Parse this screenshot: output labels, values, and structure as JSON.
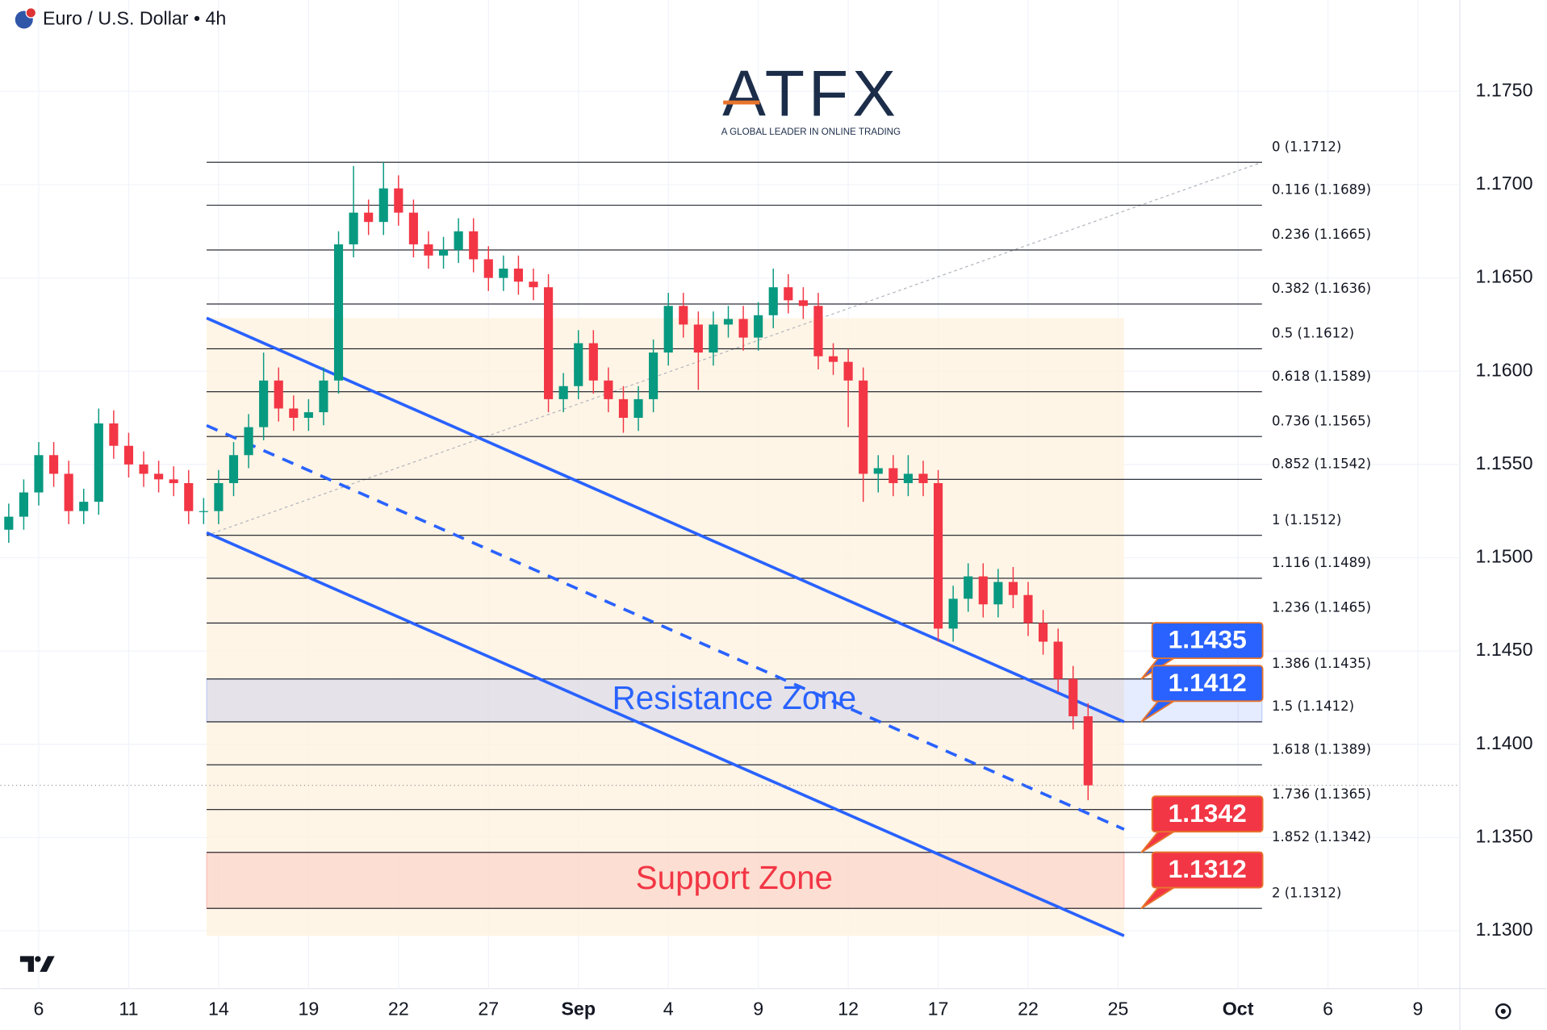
{
  "chart_data": {
    "type": "candlestick",
    "title": "Euro / U.S. Dollar • 4h",
    "logo": "ATFX",
    "tagline": "A GLOBAL LEADER IN ONLINE TRADING",
    "up_color": "#089981",
    "down_color": "#f23645",
    "xlim": [
      -1.28,
      47.4
    ],
    "ylim": [
      1.1269,
      1.1799
    ],
    "xticks": [
      {
        "value": 0,
        "label": "6"
      },
      {
        "value": 3,
        "label": "11"
      },
      {
        "value": 6,
        "label": "14"
      },
      {
        "value": 9,
        "label": "19"
      },
      {
        "value": 12,
        "label": "22"
      },
      {
        "value": 15,
        "label": "27"
      },
      {
        "value": 18,
        "label": "Sep"
      },
      {
        "value": 21,
        "label": "4"
      },
      {
        "value": 24,
        "label": "9"
      },
      {
        "value": 27,
        "label": "12"
      },
      {
        "value": 30,
        "label": "17"
      },
      {
        "value": 33,
        "label": "22"
      },
      {
        "value": 36,
        "label": "25"
      },
      {
        "value": 40,
        "label": "Oct"
      },
      {
        "value": 43,
        "label": "6"
      },
      {
        "value": 46,
        "label": "9"
      }
    ],
    "yticks": [
      {
        "value": 1.13,
        "label": "1.1300"
      },
      {
        "value": 1.135,
        "label": "1.1350"
      },
      {
        "value": 1.14,
        "label": "1.1400"
      },
      {
        "value": 1.145,
        "label": "1.1450"
      },
      {
        "value": 1.15,
        "label": "1.1500"
      },
      {
        "value": 1.155,
        "label": "1.1550"
      },
      {
        "value": 1.16,
        "label": "1.1600"
      },
      {
        "value": 1.165,
        "label": "1.1650"
      },
      {
        "value": 1.17,
        "label": "1.1700"
      },
      {
        "value": 1.175,
        "label": "1.1750"
      }
    ],
    "x": [
      -1,
      -0.5,
      0,
      0.5,
      1,
      1.5,
      2,
      2.5,
      3,
      3.5,
      4,
      4.5,
      5,
      5.5,
      6,
      6.5,
      7,
      7.5,
      8,
      8.5,
      9,
      9.5,
      10,
      10.5,
      11,
      11.5,
      12,
      12.5,
      13,
      13.5,
      14,
      14.5,
      15,
      15.5,
      16,
      16.5,
      17,
      17.5,
      18,
      18.5,
      19,
      19.5,
      20,
      20.5,
      21,
      21.5,
      22,
      22.5,
      23,
      23.5,
      24,
      24.5,
      25,
      25.5,
      26,
      26.5,
      27,
      27.5,
      28,
      28.5,
      29,
      29.5,
      30,
      30.5,
      31,
      31.5,
      32,
      32.5,
      33,
      33.5,
      34,
      34.5,
      35
    ],
    "open": [
      1.1515,
      1.1522,
      1.1535,
      1.1555,
      1.1545,
      1.1525,
      1.153,
      1.1572,
      1.156,
      1.155,
      1.1545,
      1.1542,
      1.154,
      1.1525,
      1.1525,
      1.154,
      1.1555,
      1.157,
      1.1595,
      1.158,
      1.1575,
      1.1578,
      1.1595,
      1.1668,
      1.1685,
      1.168,
      1.1698,
      1.1685,
      1.1668,
      1.1662,
      1.1665,
      1.1675,
      1.166,
      1.165,
      1.1655,
      1.1648,
      1.1645,
      1.1585,
      1.1592,
      1.1615,
      1.1595,
      1.1585,
      1.1575,
      1.1585,
      1.161,
      1.1635,
      1.1625,
      1.161,
      1.1625,
      1.1628,
      1.1618,
      1.163,
      1.1645,
      1.1638,
      1.1635,
      1.1608,
      1.1605,
      1.1595,
      1.1545,
      1.1548,
      1.154,
      1.1545,
      1.154,
      1.1462,
      1.1478,
      1.149,
      1.1475,
      1.1487,
      1.148,
      1.1465,
      1.1455,
      1.1435,
      1.1415
    ],
    "high": [
      1.1529,
      1.1542,
      1.1562,
      1.1562,
      1.1552,
      1.1537,
      1.158,
      1.1579,
      1.1567,
      1.1557,
      1.1552,
      1.1549,
      1.1547,
      1.1532,
      1.1547,
      1.1562,
      1.1577,
      1.161,
      1.1602,
      1.1587,
      1.1585,
      1.1602,
      1.1675,
      1.171,
      1.1692,
      1.1712,
      1.1705,
      1.1692,
      1.1675,
      1.1672,
      1.1682,
      1.1682,
      1.1667,
      1.1662,
      1.1662,
      1.1655,
      1.1652,
      1.1599,
      1.1622,
      1.1622,
      1.1602,
      1.1592,
      1.1592,
      1.1617,
      1.1642,
      1.1642,
      1.1632,
      1.1632,
      1.1635,
      1.1635,
      1.1637,
      1.1655,
      1.1652,
      1.1645,
      1.1642,
      1.1615,
      1.1612,
      1.1602,
      1.1555,
      1.1555,
      1.1555,
      1.1552,
      1.1547,
      1.1485,
      1.1497,
      1.1497,
      1.1494,
      1.1495,
      1.1487,
      1.1472,
      1.1462,
      1.1442,
      1.1422
    ],
    "low": [
      1.1508,
      1.1515,
      1.1528,
      1.1538,
      1.1518,
      1.1518,
      1.1523,
      1.1553,
      1.1543,
      1.1538,
      1.1535,
      1.1533,
      1.1518,
      1.1518,
      1.1518,
      1.1533,
      1.1548,
      1.1563,
      1.1573,
      1.1568,
      1.1568,
      1.1571,
      1.1588,
      1.1661,
      1.1673,
      1.1673,
      1.1678,
      1.1661,
      1.1655,
      1.1655,
      1.1658,
      1.1653,
      1.1643,
      1.1643,
      1.1641,
      1.1638,
      1.1578,
      1.1578,
      1.1585,
      1.1588,
      1.1578,
      1.1567,
      1.1568,
      1.1578,
      1.1603,
      1.1618,
      1.159,
      1.1603,
      1.1618,
      1.1611,
      1.1611,
      1.1623,
      1.1631,
      1.1628,
      1.1601,
      1.1598,
      1.157,
      1.153,
      1.1535,
      1.1533,
      1.1533,
      1.1533,
      1.1455,
      1.1455,
      1.1471,
      1.1468,
      1.1468,
      1.1473,
      1.1458,
      1.1448,
      1.1428,
      1.1408,
      1.137
    ],
    "close": [
      1.1522,
      1.1535,
      1.1555,
      1.1545,
      1.1525,
      1.153,
      1.1572,
      1.156,
      1.155,
      1.1545,
      1.1542,
      1.154,
      1.1525,
      1.1525,
      1.154,
      1.1555,
      1.157,
      1.1595,
      1.158,
      1.1575,
      1.1578,
      1.1595,
      1.1668,
      1.1685,
      1.168,
      1.1698,
      1.1685,
      1.1668,
      1.1662,
      1.1665,
      1.1675,
      1.166,
      1.165,
      1.1655,
      1.1648,
      1.1645,
      1.1585,
      1.1592,
      1.1615,
      1.1595,
      1.1585,
      1.1575,
      1.1585,
      1.161,
      1.1635,
      1.1625,
      1.161,
      1.1625,
      1.1628,
      1.1618,
      1.163,
      1.1645,
      1.1638,
      1.1635,
      1.1608,
      1.1605,
      1.1595,
      1.1545,
      1.1548,
      1.154,
      1.1545,
      1.154,
      1.1462,
      1.1478,
      1.149,
      1.1475,
      1.1487,
      1.148,
      1.1465,
      1.1455,
      1.1435,
      1.1415,
      1.1378
    ],
    "fib": {
      "x": [
        5.6,
        40.8
      ],
      "trend": [
        1.1512,
        1.1712
      ],
      "color": "#131722",
      "levels": [
        {
          "label": "0 (1.1712)",
          "price": 1.1712
        },
        {
          "label": "0.116 (1.1689)",
          "price": 1.1689
        },
        {
          "label": "0.236 (1.1665)",
          "price": 1.1665
        },
        {
          "label": "0.382 (1.1636)",
          "price": 1.1636
        },
        {
          "label": "0.5 (1.1612)",
          "price": 1.1612
        },
        {
          "label": "0.618 (1.1589)",
          "price": 1.1589
        },
        {
          "label": "0.736 (1.1565)",
          "price": 1.1565
        },
        {
          "label": "0.852 (1.1542)",
          "price": 1.1542
        },
        {
          "label": "1 (1.1512)",
          "price": 1.1512
        },
        {
          "label": "1.116 (1.1489)",
          "price": 1.1489
        },
        {
          "label": "1.236 (1.1465)",
          "price": 1.1465
        },
        {
          "label": "1.386 (1.1435)",
          "price": 1.1435
        },
        {
          "label": "1.5 (1.1412)",
          "price": 1.1412
        },
        {
          "label": "1.618 (1.1389)",
          "price": 1.1389
        },
        {
          "label": "1.736 (1.1365)",
          "price": 1.1365
        },
        {
          "label": "1.852 (1.1342)",
          "price": 1.1342
        },
        {
          "label": "2 (1.1312)",
          "price": 1.1312
        }
      ]
    },
    "channel": {
      "x": [
        5.6,
        36.2
      ],
      "upper": [
        1.16285,
        1.1412
      ],
      "middle": [
        1.15709,
        1.13544
      ],
      "lower": [
        1.15134,
        1.12973
      ],
      "color": "#2962ff"
    },
    "zones": [
      {
        "label": "Resistance Zone",
        "range": [
          1.1412,
          1.1435
        ],
        "x": [
          5.6,
          40.8
        ],
        "color": "#2962ff"
      },
      {
        "label": "Support Zone",
        "range": [
          1.1312,
          1.1342
        ],
        "x": [
          5.6,
          36.2
        ],
        "color": "#f23645"
      }
    ],
    "price_tags": [
      {
        "value": 1.1435,
        "color": "#2962ff"
      },
      {
        "value": 1.1412,
        "color": "#2962ff"
      },
      {
        "value": 1.1342,
        "color": "#f23645"
      },
      {
        "value": 1.1312,
        "color": "#f23645"
      }
    ]
  }
}
